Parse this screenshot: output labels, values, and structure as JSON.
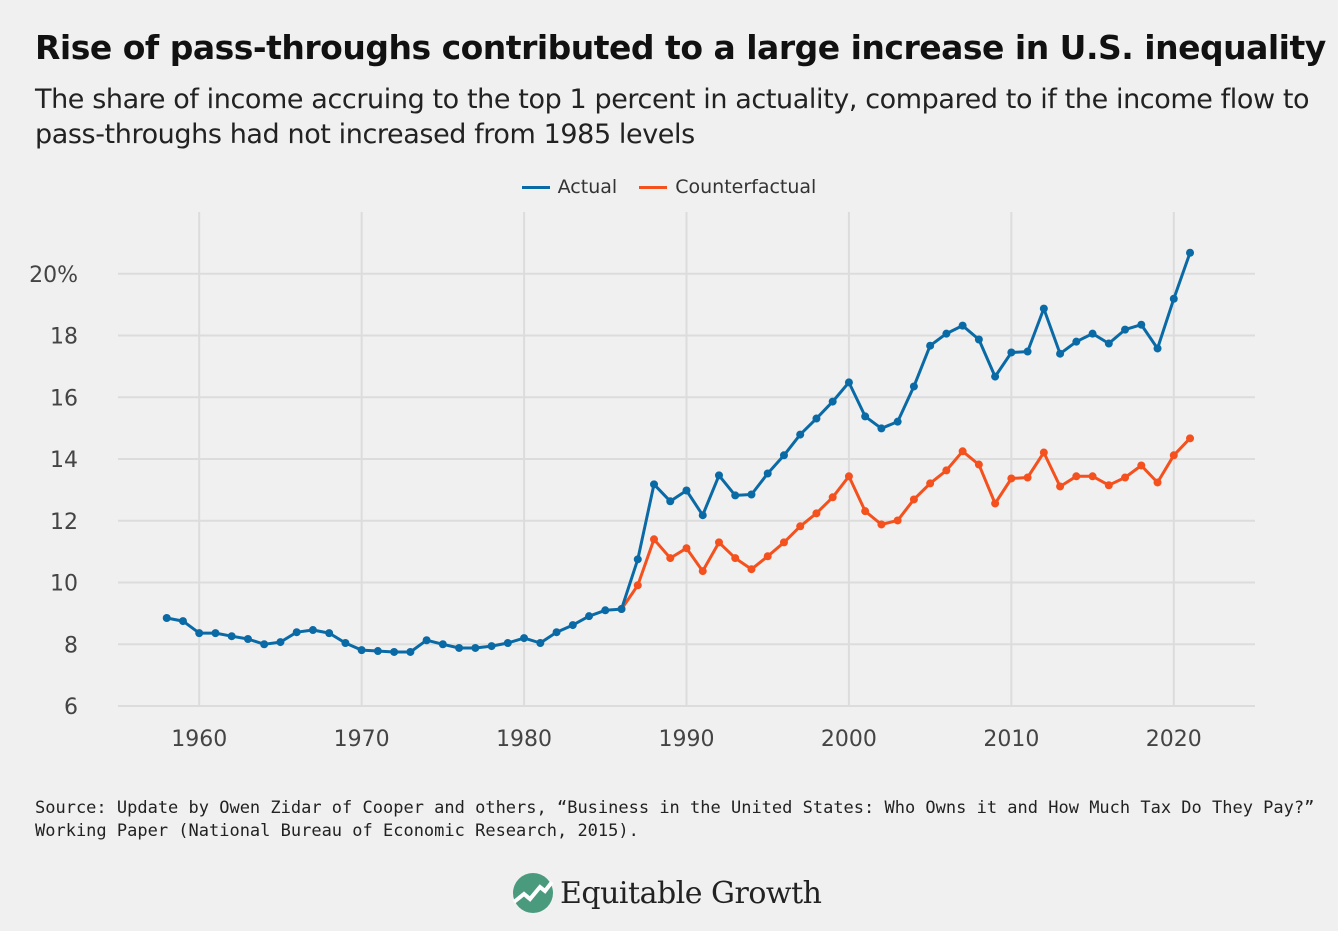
{
  "title": "Rise of pass-throughs contributed to a large increase in U.S. inequality",
  "subtitle": "The share of income accruing to the top 1 percent in actuality, compared to if the income flow to pass-throughs had not increased from 1985 levels",
  "source_line1": "Source: Update by Owen Zidar of Cooper and others, “Business in the United States: Who Owns it and How Much Tax Do They Pay?”",
  "source_line2": "Working Paper (National Bureau of Economic Research, 2015).",
  "logo_text": "Equitable Growth",
  "chart_data": {
    "type": "line",
    "title": "",
    "xlabel": "",
    "ylabel": "",
    "xlim": [
      1955,
      2025
    ],
    "ylim": [
      6,
      22
    ],
    "grid": true,
    "legend_position": "top-center",
    "x_ticks": [
      1960,
      1970,
      1980,
      1990,
      2000,
      2010,
      2020
    ],
    "x_tick_labels": [
      "1960",
      "1970",
      "1980",
      "1990",
      "2000",
      "2010",
      "2020"
    ],
    "y_ticks": [
      6,
      8,
      10,
      12,
      14,
      16,
      18,
      20
    ],
    "y_tick_labels": [
      "6",
      "8",
      "10",
      "12",
      "14",
      "16",
      "18",
      "20%"
    ],
    "series": [
      {
        "name": "Actual",
        "color": "#0a6aa6",
        "x": [
          1958,
          1959,
          1960,
          1961,
          1962,
          1963,
          1964,
          1965,
          1966,
          1967,
          1968,
          1969,
          1970,
          1971,
          1972,
          1973,
          1974,
          1975,
          1976,
          1977,
          1978,
          1979,
          1980,
          1981,
          1982,
          1983,
          1984,
          1985,
          1986,
          1987,
          1988,
          1989,
          1990,
          1991,
          1992,
          1993,
          1994,
          1995,
          1996,
          1997,
          1998,
          1999,
          2000,
          2001,
          2002,
          2003,
          2004,
          2005,
          2006,
          2007,
          2008,
          2009,
          2010,
          2011,
          2012,
          2013,
          2014,
          2015,
          2016,
          2017,
          2018,
          2019,
          2020,
          2021
        ],
        "values": [
          8.85,
          8.75,
          8.36,
          8.36,
          8.26,
          8.17,
          8.0,
          8.07,
          8.39,
          8.46,
          8.36,
          8.04,
          7.81,
          7.78,
          7.75,
          7.75,
          8.13,
          8.0,
          7.88,
          7.88,
          7.94,
          8.04,
          8.2,
          8.04,
          8.39,
          8.62,
          8.91,
          9.1,
          9.14,
          10.75,
          13.18,
          12.63,
          12.98,
          12.18,
          13.47,
          12.82,
          12.85,
          13.53,
          14.12,
          14.79,
          15.31,
          15.86,
          16.48,
          15.38,
          14.99,
          15.21,
          16.35,
          17.67,
          18.06,
          18.32,
          17.87,
          16.67,
          17.45,
          17.48,
          18.87,
          17.41,
          17.8,
          18.06,
          17.74,
          18.19,
          18.35,
          17.58,
          19.19,
          20.68
        ]
      },
      {
        "name": "Counterfactual",
        "color": "#f4511e",
        "x": [
          1986,
          1987,
          1988,
          1989,
          1990,
          1991,
          1992,
          1993,
          1994,
          1995,
          1996,
          1997,
          1998,
          1999,
          2000,
          2001,
          2002,
          2003,
          2004,
          2005,
          2006,
          2007,
          2008,
          2009,
          2010,
          2011,
          2012,
          2013,
          2014,
          2015,
          2016,
          2017,
          2018,
          2019,
          2020,
          2021
        ],
        "values": [
          9.14,
          9.91,
          11.4,
          10.79,
          11.11,
          10.37,
          11.3,
          10.79,
          10.43,
          10.85,
          11.3,
          11.82,
          12.24,
          12.76,
          13.44,
          12.31,
          11.88,
          12.01,
          12.69,
          13.21,
          13.63,
          14.25,
          13.82,
          12.56,
          13.37,
          13.4,
          14.21,
          13.11,
          13.44,
          13.44,
          13.15,
          13.4,
          13.79,
          13.24,
          14.12,
          14.67
        ]
      }
    ]
  }
}
